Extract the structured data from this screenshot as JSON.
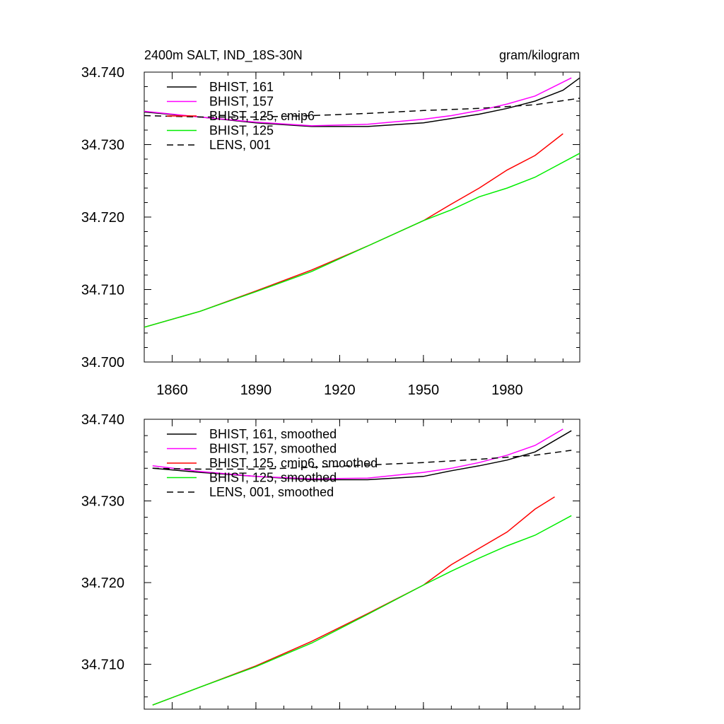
{
  "figure": {
    "title_left": "2400m SALT, IND_18S-30N",
    "title_right": "gram/kilogram"
  },
  "chart_data": [
    {
      "type": "line",
      "title": "2400m SALT, IND_18S-30N",
      "units": "gram/kilogram",
      "xlabel": "",
      "ylabel": "",
      "xlim": [
        1850,
        2006
      ],
      "ylim": [
        34.7,
        34.74
      ],
      "x_ticks": [
        1860,
        1890,
        1920,
        1950,
        1980
      ],
      "x_tick_labels": [
        "1860",
        "1890",
        "1920",
        "1950",
        "1980"
      ],
      "y_ticks": [
        34.7,
        34.71,
        34.72,
        34.73,
        34.74
      ],
      "y_tick_labels": [
        "34.700",
        "34.710",
        "34.720",
        "34.730",
        "34.740"
      ],
      "legend_position": "top-left",
      "series": [
        {
          "name": "BHIST, 161",
          "color": "#000000",
          "dash": "solid",
          "x": [
            1850,
            1870,
            1890,
            1910,
            1930,
            1950,
            1960,
            1970,
            1980,
            1990,
            2000,
            2006
          ],
          "y": [
            34.7345,
            34.7338,
            34.733,
            34.7325,
            34.7325,
            34.733,
            34.7336,
            34.7342,
            34.735,
            34.736,
            34.7375,
            34.7392
          ]
        },
        {
          "name": "BHIST, 157",
          "color": "#ff00ff",
          "dash": "solid",
          "x": [
            1850,
            1870,
            1890,
            1910,
            1930,
            1950,
            1960,
            1970,
            1980,
            1990,
            2003
          ],
          "y": [
            34.7346,
            34.7338,
            34.7331,
            34.7326,
            34.7328,
            34.7335,
            34.734,
            34.7347,
            34.7356,
            34.7367,
            34.7392
          ]
        },
        {
          "name": "BHIST, 125, cmip6",
          "color": "#ff0000",
          "dash": "solid",
          "x": [
            1850,
            1870,
            1890,
            1910,
            1930,
            1950,
            1960,
            1970,
            1980,
            1990,
            2000
          ],
          "y": [
            34.7048,
            34.707,
            34.7098,
            34.7127,
            34.716,
            34.7195,
            34.7218,
            34.724,
            34.7265,
            34.7285,
            34.7315
          ]
        },
        {
          "name": "BHIST, 125",
          "color": "#00ee00",
          "dash": "solid",
          "x": [
            1850,
            1870,
            1890,
            1910,
            1930,
            1950,
            1960,
            1970,
            1980,
            1990,
            2006
          ],
          "y": [
            34.7048,
            34.707,
            34.7097,
            34.7125,
            34.716,
            34.7195,
            34.721,
            34.7228,
            34.724,
            34.7255,
            34.7288
          ]
        },
        {
          "name": "LENS, 001",
          "color": "#000000",
          "dash": "dash",
          "x": [
            1850,
            1870,
            1890,
            1910,
            1930,
            1950,
            1970,
            1990,
            2006
          ],
          "y": [
            34.734,
            34.7338,
            34.7338,
            34.734,
            34.7343,
            34.7347,
            34.735,
            34.7355,
            34.7364
          ]
        }
      ]
    },
    {
      "type": "line",
      "title": "",
      "xlabel": "",
      "ylabel": "",
      "xlim": [
        1850,
        2006
      ],
      "ylim": [
        34.7045,
        34.74
      ],
      "x_ticks": [
        1860,
        1890,
        1920,
        1950,
        1980
      ],
      "x_tick_labels": [],
      "y_ticks": [
        34.71,
        34.72,
        34.73,
        34.74
      ],
      "y_tick_labels": [
        "34.710",
        "34.720",
        "34.730",
        "34.740"
      ],
      "legend_position": "top-left",
      "series": [
        {
          "name": "BHIST, 161, smoothed",
          "color": "#000000",
          "dash": "solid",
          "x": [
            1853,
            1870,
            1890,
            1910,
            1930,
            1950,
            1960,
            1970,
            1980,
            1990,
            2003
          ],
          "y": [
            34.734,
            34.7335,
            34.733,
            34.7326,
            34.7326,
            34.733,
            34.7337,
            34.7343,
            34.735,
            34.736,
            34.7386
          ]
        },
        {
          "name": "BHIST, 157, smoothed",
          "color": "#ff00ff",
          "dash": "solid",
          "x": [
            1853,
            1870,
            1890,
            1910,
            1930,
            1950,
            1960,
            1970,
            1980,
            1990,
            2000
          ],
          "y": [
            34.7343,
            34.7336,
            34.733,
            34.7327,
            34.7328,
            34.7335,
            34.734,
            34.7347,
            34.7356,
            34.7368,
            34.7388
          ]
        },
        {
          "name": "BHIST, 125, cmip6, smoothed",
          "color": "#ff0000",
          "dash": "solid",
          "x": [
            1853,
            1870,
            1890,
            1910,
            1930,
            1950,
            1960,
            1970,
            1980,
            1990,
            1997
          ],
          "y": [
            34.705,
            34.7072,
            34.7098,
            34.7128,
            34.7162,
            34.7197,
            34.7222,
            34.7242,
            34.7262,
            34.729,
            34.7305
          ]
        },
        {
          "name": "BHIST, 125, smoothed",
          "color": "#00ee00",
          "dash": "solid",
          "x": [
            1853,
            1870,
            1890,
            1910,
            1930,
            1950,
            1960,
            1970,
            1980,
            1990,
            2003
          ],
          "y": [
            34.705,
            34.7072,
            34.7097,
            34.7126,
            34.7161,
            34.7197,
            34.7214,
            34.723,
            34.7245,
            34.7258,
            34.7282
          ]
        },
        {
          "name": "LENS, 001, smoothed",
          "color": "#000000",
          "dash": "dash",
          "x": [
            1853,
            1870,
            1890,
            1910,
            1930,
            1950,
            1970,
            1990,
            2003
          ],
          "y": [
            34.734,
            34.7339,
            34.7339,
            34.7341,
            34.7344,
            34.7347,
            34.7351,
            34.7356,
            34.7362
          ]
        }
      ]
    }
  ]
}
